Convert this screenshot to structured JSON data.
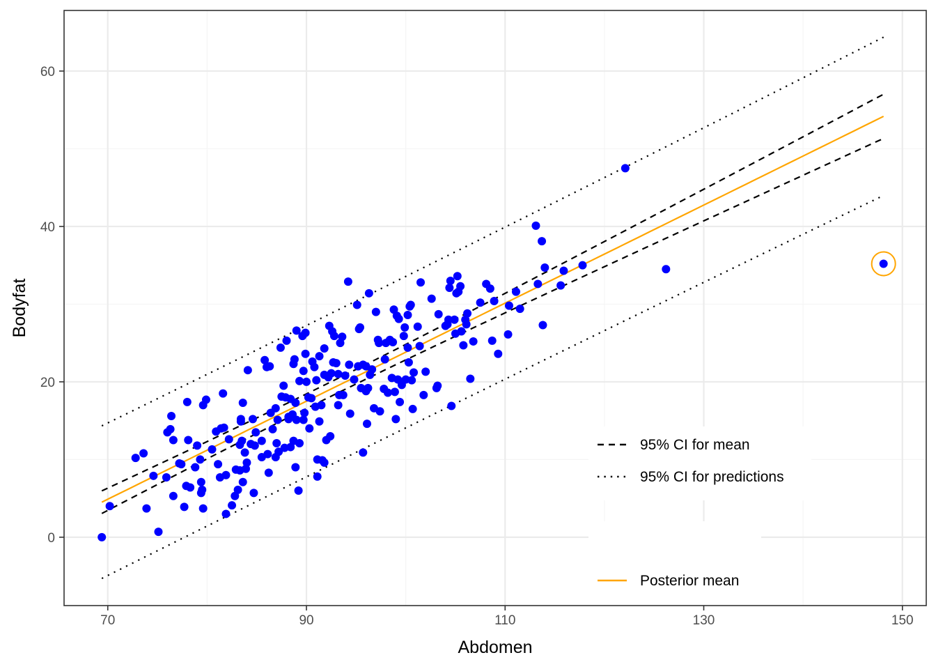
{
  "chart_data": {
    "type": "scatter",
    "xlabel": "Abdomen",
    "ylabel": "Bodyfat",
    "xlim": [
      65.6,
      152.4
    ],
    "ylim": [
      -8.8,
      67.8
    ],
    "x_ticks": [
      70,
      90,
      110,
      130,
      150
    ],
    "y_ticks": [
      0,
      20,
      40,
      60
    ],
    "grid": true,
    "legend_position": "bottom-right",
    "colors": {
      "points": "#0000ff",
      "posterior_mean": "#ffa500",
      "ci": "#000000",
      "grid_major": "#ebebeb",
      "grid_minor": "#f5f5f5",
      "frame": "#333333"
    },
    "legend": [
      {
        "label": "95% CI for mean",
        "style": "dashed"
      },
      {
        "label": "95% CI for predictions",
        "style": "dotted"
      },
      {
        "label": "Posterior mean",
        "style": "solid"
      }
    ],
    "lines": {
      "range": [
        69.4,
        148.1
      ],
      "posterior_mean": {
        "slope": 0.631,
        "intercept": -39.28
      },
      "ci_mean_half_width": {
        "center": 92.56,
        "base": 0.563,
        "scale": 0.0484
      },
      "ci_pred_half_width": {
        "center": 92.56,
        "base": 9.74,
        "scale": 0.00289
      }
    },
    "highlighted_point": {
      "x": 148.1,
      "y": 35.2
    },
    "points": [
      [
        69.4,
        0.0
      ],
      [
        70.2,
        4.0
      ],
      [
        72.8,
        10.2
      ],
      [
        73.6,
        10.8
      ],
      [
        73.9,
        3.7
      ],
      [
        74.6,
        7.9
      ],
      [
        75.1,
        0.7
      ],
      [
        75.9,
        7.7
      ],
      [
        76.0,
        13.5
      ],
      [
        76.3,
        13.9
      ],
      [
        76.4,
        15.6
      ],
      [
        76.6,
        12.5
      ],
      [
        76.6,
        5.3
      ],
      [
        77.2,
        9.5
      ],
      [
        77.4,
        9.4
      ],
      [
        77.7,
        3.9
      ],
      [
        77.9,
        6.6
      ],
      [
        78.0,
        17.4
      ],
      [
        78.1,
        12.5
      ],
      [
        78.3,
        6.4
      ],
      [
        78.8,
        9.0
      ],
      [
        79.0,
        11.8
      ],
      [
        79.3,
        10.0
      ],
      [
        79.4,
        7.1
      ],
      [
        79.4,
        5.7
      ],
      [
        79.5,
        6.1
      ],
      [
        79.6,
        3.7
      ],
      [
        79.6,
        17.0
      ],
      [
        79.9,
        17.7
      ],
      [
        80.5,
        11.3
      ],
      [
        80.9,
        13.6
      ],
      [
        81.1,
        9.4
      ],
      [
        81.3,
        7.7
      ],
      [
        81.4,
        14.0
      ],
      [
        81.6,
        18.5
      ],
      [
        81.7,
        14.1
      ],
      [
        81.9,
        8.0
      ],
      [
        81.9,
        3.0
      ],
      [
        82.2,
        12.6
      ],
      [
        82.5,
        4.1
      ],
      [
        82.8,
        5.3
      ],
      [
        82.9,
        8.7
      ],
      [
        83.1,
        6.1
      ],
      [
        83.3,
        8.6
      ],
      [
        83.3,
        11.9
      ],
      [
        83.4,
        14.9
      ],
      [
        83.4,
        15.2
      ],
      [
        83.5,
        12.4
      ],
      [
        83.6,
        17.3
      ],
      [
        83.6,
        7.1
      ],
      [
        83.8,
        10.9
      ],
      [
        83.9,
        8.8
      ],
      [
        84.0,
        9.6
      ],
      [
        84.1,
        21.5
      ],
      [
        84.4,
        12.0
      ],
      [
        84.6,
        15.2
      ],
      [
        84.7,
        5.7
      ],
      [
        84.8,
        11.8
      ],
      [
        84.9,
        13.5
      ],
      [
        85.5,
        12.4
      ],
      [
        85.5,
        10.3
      ],
      [
        85.8,
        22.8
      ],
      [
        86.0,
        21.9
      ],
      [
        86.1,
        10.7
      ],
      [
        86.2,
        8.3
      ],
      [
        86.3,
        22.0
      ],
      [
        86.4,
        16.0
      ],
      [
        86.6,
        13.9
      ],
      [
        86.9,
        16.6
      ],
      [
        86.9,
        10.3
      ],
      [
        87.0,
        12.1
      ],
      [
        87.1,
        15.1
      ],
      [
        87.2,
        11.0
      ],
      [
        87.4,
        24.4
      ],
      [
        87.5,
        18.1
      ],
      [
        87.7,
        19.5
      ],
      [
        87.8,
        11.5
      ],
      [
        87.9,
        18.0
      ],
      [
        88.0,
        25.3
      ],
      [
        88.2,
        15.2
      ],
      [
        88.2,
        15.5
      ],
      [
        88.4,
        17.8
      ],
      [
        88.4,
        11.6
      ],
      [
        88.6,
        15.8
      ],
      [
        88.7,
        22.3
      ],
      [
        88.7,
        12.4
      ],
      [
        88.8,
        22.9
      ],
      [
        88.9,
        9.0
      ],
      [
        88.9,
        17.3
      ],
      [
        89.0,
        26.6
      ],
      [
        89.0,
        15.1
      ],
      [
        89.2,
        6.0
      ],
      [
        89.3,
        12.1
      ],
      [
        89.3,
        20.1
      ],
      [
        89.6,
        25.9
      ],
      [
        89.7,
        21.4
      ],
      [
        89.7,
        15.1
      ],
      [
        89.8,
        16.0
      ],
      [
        89.9,
        23.6
      ],
      [
        89.9,
        26.3
      ],
      [
        90.0,
        20.0
      ],
      [
        90.2,
        18.0
      ],
      [
        90.3,
        14.0
      ],
      [
        90.5,
        17.9
      ],
      [
        90.6,
        22.6
      ],
      [
        90.8,
        21.9
      ],
      [
        90.9,
        16.8
      ],
      [
        91.0,
        20.2
      ],
      [
        91.1,
        10.0
      ],
      [
        91.1,
        7.8
      ],
      [
        91.3,
        23.3
      ],
      [
        91.3,
        14.9
      ],
      [
        91.5,
        17.0
      ],
      [
        91.6,
        9.9
      ],
      [
        91.8,
        24.3
      ],
      [
        91.8,
        20.9
      ],
      [
        91.8,
        9.6
      ],
      [
        92.0,
        12.5
      ],
      [
        92.2,
        20.6
      ],
      [
        92.3,
        27.2
      ],
      [
        92.4,
        13.0
      ],
      [
        92.5,
        21.1
      ],
      [
        92.6,
        26.5
      ],
      [
        92.7,
        22.5
      ],
      [
        92.8,
        25.9
      ],
      [
        93.0,
        22.4
      ],
      [
        93.2,
        21.0
      ],
      [
        93.2,
        17.0
      ],
      [
        93.3,
        18.3
      ],
      [
        93.4,
        25.0
      ],
      [
        93.6,
        25.8
      ],
      [
        93.7,
        18.3
      ],
      [
        93.9,
        20.8
      ],
      [
        94.2,
        32.9
      ],
      [
        94.3,
        22.2
      ],
      [
        94.4,
        15.9
      ],
      [
        94.8,
        20.3
      ],
      [
        95.1,
        29.9
      ],
      [
        95.2,
        22.0
      ],
      [
        95.3,
        26.8
      ],
      [
        95.4,
        27.0
      ],
      [
        95.5,
        19.2
      ],
      [
        95.7,
        22.2
      ],
      [
        95.7,
        10.9
      ],
      [
        96.0,
        18.8
      ],
      [
        96.0,
        22.0
      ],
      [
        96.1,
        14.6
      ],
      [
        96.2,
        19.2
      ],
      [
        96.3,
        31.4
      ],
      [
        96.4,
        20.9
      ],
      [
        96.6,
        21.6
      ],
      [
        96.8,
        16.6
      ],
      [
        97.0,
        29.0
      ],
      [
        97.2,
        25.4
      ],
      [
        97.3,
        25.0
      ],
      [
        97.4,
        16.2
      ],
      [
        97.8,
        19.1
      ],
      [
        97.9,
        22.9
      ],
      [
        98.0,
        25.0
      ],
      [
        98.2,
        18.6
      ],
      [
        98.4,
        25.4
      ],
      [
        98.6,
        20.5
      ],
      [
        98.7,
        25.1
      ],
      [
        98.8,
        29.3
      ],
      [
        98.9,
        18.7
      ],
      [
        99.0,
        15.2
      ],
      [
        99.1,
        28.5
      ],
      [
        99.2,
        20.3
      ],
      [
        99.3,
        28.1
      ],
      [
        99.4,
        17.4
      ],
      [
        99.6,
        19.6
      ],
      [
        99.8,
        25.9
      ],
      [
        99.9,
        27.0
      ],
      [
        100.0,
        20.3
      ],
      [
        100.2,
        28.6
      ],
      [
        100.2,
        24.4
      ],
      [
        100.3,
        22.5
      ],
      [
        100.4,
        29.7
      ],
      [
        100.5,
        29.9
      ],
      [
        100.6,
        20.2
      ],
      [
        100.7,
        16.5
      ],
      [
        100.8,
        21.2
      ],
      [
        101.2,
        27.1
      ],
      [
        101.4,
        24.6
      ],
      [
        101.5,
        32.8
      ],
      [
        101.8,
        18.3
      ],
      [
        102.0,
        21.3
      ],
      [
        102.6,
        30.7
      ],
      [
        103.1,
        19.2
      ],
      [
        103.2,
        19.5
      ],
      [
        103.3,
        28.7
      ],
      [
        104.0,
        27.2
      ],
      [
        104.2,
        27.4
      ],
      [
        104.3,
        28.0
      ],
      [
        104.4,
        32.1
      ],
      [
        104.5,
        33.0
      ],
      [
        104.6,
        16.9
      ],
      [
        104.9,
        28.0
      ],
      [
        105.0,
        26.2
      ],
      [
        105.1,
        31.4
      ],
      [
        105.2,
        33.6
      ],
      [
        105.3,
        31.6
      ],
      [
        105.5,
        32.3
      ],
      [
        105.6,
        26.5
      ],
      [
        105.8,
        24.7
      ],
      [
        106.0,
        28.0
      ],
      [
        106.1,
        27.4
      ],
      [
        106.2,
        28.8
      ],
      [
        106.5,
        20.4
      ],
      [
        106.8,
        25.2
      ],
      [
        107.5,
        30.2
      ],
      [
        108.1,
        32.6
      ],
      [
        108.5,
        32.0
      ],
      [
        108.7,
        25.3
      ],
      [
        108.9,
        30.4
      ],
      [
        109.3,
        23.6
      ],
      [
        110.3,
        26.1
      ],
      [
        110.4,
        29.8
      ],
      [
        111.1,
        31.6
      ],
      [
        111.5,
        29.4
      ],
      [
        113.1,
        40.1
      ],
      [
        113.3,
        32.6
      ],
      [
        113.7,
        38.1
      ],
      [
        113.8,
        27.3
      ],
      [
        114.0,
        34.7
      ],
      [
        115.6,
        32.4
      ],
      [
        115.9,
        34.3
      ],
      [
        117.8,
        35.0
      ],
      [
        122.1,
        47.5
      ],
      [
        126.2,
        34.5
      ],
      [
        148.1,
        35.2
      ]
    ]
  }
}
